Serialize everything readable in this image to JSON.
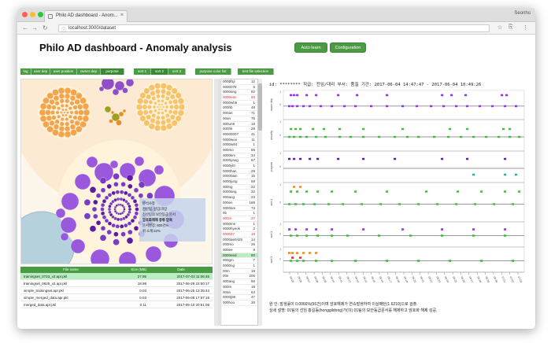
{
  "browser": {
    "tab_title": "Philo AD dashboard - Anom...",
    "tab_close": "×",
    "profile": "Seonho",
    "url": "localhost:3000/dataset",
    "lock_glyph": "ⓘ",
    "back": "←",
    "forward": "→",
    "reload": "↻",
    "star": "☆",
    "ext": "⎘",
    "menu": "⋮"
  },
  "page": {
    "title": "Philo AD dashboard - Anomaly analysis",
    "auto_learn": "Auto learn",
    "configuration": "Configuration"
  },
  "toolbar": [
    {
      "label": "log"
    },
    {
      "label": "user dep"
    },
    {
      "label": "user position"
    },
    {
      "label": "owner dep"
    },
    {
      "label": "purpose"
    },
    {
      "label": "sort 1"
    },
    {
      "label": "sort 2"
    },
    {
      "label": "sort 3"
    },
    {
      "label": "purpose color list"
    },
    {
      "label": "test file selection"
    }
  ],
  "tooltip": {
    "line1": "분석사항",
    "line2": "전산팀, 선임/과장",
    "line3": "전산팀의 보안등급 문서",
    "line4": "암호화해제 종류 암복",
    "line5": "문서명칭: 800건%",
    "line6": "위 소계:22%"
  },
  "files": {
    "headers": {
      "name": "File name",
      "size": "Size (MB)",
      "date": "Date"
    },
    "rows": [
      {
        "name": "trainingset_0723_v2.apr.pkl",
        "size": "27.95",
        "date": "2017-07-03 11:06:45",
        "selected": true
      },
      {
        "name": "trainingset_0625_v2.apr.pkl",
        "size": "18.98",
        "date": "2017-06-29 22:50:17",
        "selected": false
      },
      {
        "name": "simple_trainingset.apr.pkl",
        "size": "0.03",
        "date": "2017-06-25 13:35:43",
        "selected": false
      },
      {
        "name": "simple_merged_data.apr.pkl",
        "size": "0.03",
        "date": "2017-06-05 17:57:18",
        "selected": false
      },
      {
        "name": "merged_data.apr.pkl",
        "size": "0.11",
        "date": "2017-05-10 20:51:08",
        "selected": false
      }
    ]
  },
  "users": [
    {
      "id": "000Ø1jr",
      "n": "12",
      "state": ""
    },
    {
      "id": "0000078",
      "n": "6",
      "state": ""
    },
    {
      "id": "0000ang",
      "n": "82",
      "state": ""
    },
    {
      "id": "0000ean",
      "n": "60",
      "state": "red"
    },
    {
      "id": "0000wh5",
      "n": "1",
      "state": ""
    },
    {
      "id": "000hb",
      "n": "48",
      "state": ""
    },
    {
      "id": "000an",
      "n": "71",
      "state": ""
    },
    {
      "id": "00an",
      "n": "76",
      "state": ""
    },
    {
      "id": "000un9",
      "n": "18",
      "state": ""
    },
    {
      "id": "000hk",
      "n": "28",
      "state": ""
    },
    {
      "id": "00000007",
      "n": "41",
      "state": ""
    },
    {
      "id": "0000woo",
      "n": "11",
      "state": ""
    },
    {
      "id": "0000w84",
      "n": "1",
      "state": ""
    },
    {
      "id": "000mo",
      "n": "56",
      "state": ""
    },
    {
      "id": "0000km",
      "n": "34",
      "state": ""
    },
    {
      "id": "0000yang",
      "n": "67",
      "state": ""
    },
    {
      "id": "0000yl0",
      "n": "1",
      "state": ""
    },
    {
      "id": "0000han",
      "n": "29",
      "state": ""
    },
    {
      "id": "00000ain",
      "n": "15",
      "state": ""
    },
    {
      "id": "0000jung",
      "n": "59",
      "state": ""
    },
    {
      "id": "000ng",
      "n": "22",
      "state": ""
    },
    {
      "id": "0000ang",
      "n": "32",
      "state": ""
    },
    {
      "id": "000ang",
      "n": "23",
      "state": ""
    },
    {
      "id": "000en",
      "n": "188",
      "state": ""
    },
    {
      "id": "0000am",
      "n": "73",
      "state": ""
    },
    {
      "id": "0b",
      "n": "1",
      "state": ""
    },
    {
      "id": "000m",
      "n": "27",
      "state": "red"
    },
    {
      "id": "0000mn",
      "n": "1",
      "state": ""
    },
    {
      "id": "0000hyeok",
      "n": "2",
      "state": ""
    },
    {
      "id": "000037",
      "n": "18",
      "state": "red"
    },
    {
      "id": "0000ae0425",
      "n": "14",
      "state": ""
    },
    {
      "id": "000mo",
      "n": "26",
      "state": ""
    },
    {
      "id": "000ee",
      "n": "8",
      "state": ""
    },
    {
      "id": "0000eed",
      "n": "80",
      "state": "sel"
    },
    {
      "id": "000gm",
      "n": "7",
      "state": ""
    },
    {
      "id": "0000ng",
      "n": "1",
      "state": ""
    },
    {
      "id": "00m",
      "n": "18",
      "state": ""
    },
    {
      "id": "00e",
      "n": "205",
      "state": ""
    },
    {
      "id": "000ang",
      "n": "56",
      "state": ""
    },
    {
      "id": "000m",
      "n": "18",
      "state": ""
    },
    {
      "id": "00an",
      "n": "63",
      "state": ""
    },
    {
      "id": "0000j08",
      "n": "47",
      "state": ""
    },
    {
      "id": "000hoo",
      "n": "30",
      "state": ""
    }
  ],
  "detail": {
    "header": "id: ********     직급: 전임/대리     부서: 품질     기간: 2017-06-04 14:47:47 - 2017-06-04 10:49:26",
    "rows": [
      {
        "label": "owner dep"
      },
      {
        "label": "security"
      },
      {
        "label": "purpose"
      },
      {
        "label": "sort 1"
      },
      {
        "label": "sort 2"
      },
      {
        "label": "sort 3"
      },
      {
        "label": "ext"
      }
    ],
    "x_ticks": [
      "06-05",
      "06-06",
      "06-07",
      "06-08",
      "06-09",
      "06-10",
      "06-11",
      "06-12",
      "06-13",
      "06-14",
      "06-15",
      "06-16",
      "06-17",
      "06-18",
      "06-19",
      "06-20",
      "06-21",
      "06-22",
      "06-23",
      "06-24",
      "06-25",
      "06-26",
      "06-27",
      "06-28",
      "06-29",
      "06-30",
      "07-01",
      "07-02",
      "07-03"
    ],
    "foot1": "원     인: 발생률이 0.0066%(56건)이며 암호해제가 연속발생하여 이상패턴(1.6210)으로 검출.",
    "foot2": "상세 설명: 01팀의 선임 홍길동(honggildong)가(이) 01팀의 보안등급문서를 해제하고 암호화 해제 성공."
  },
  "colors": {
    "purple": "#8a3fd6",
    "green": "#49b649",
    "orange": "#f08a24",
    "red": "#e23030",
    "teal": "#3aa9a0",
    "olive": "#a0a020"
  }
}
